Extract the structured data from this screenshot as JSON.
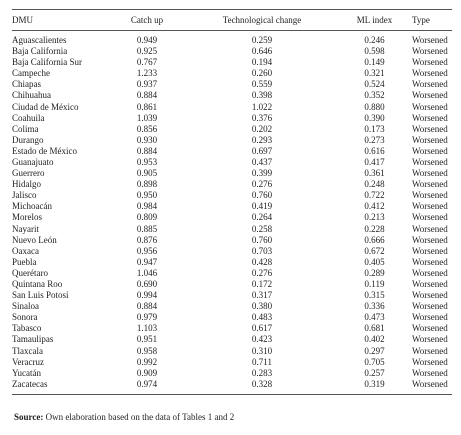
{
  "table": {
    "headers": [
      "DMU",
      "Catch up",
      "Technological change",
      "ML index",
      "Type"
    ],
    "rows": [
      [
        "Aguascalientes",
        "0.949",
        "0.259",
        "0.246",
        "Worsened"
      ],
      [
        "Baja California",
        "0.925",
        "0.646",
        "0.598",
        "Worsened"
      ],
      [
        "Baja California Sur",
        "0.767",
        "0.194",
        "0.149",
        "Worsened"
      ],
      [
        "Campeche",
        "1.233",
        "0.260",
        "0.321",
        "Worsened"
      ],
      [
        "Chiapas",
        "0.937",
        "0.559",
        "0.524",
        "Worsened"
      ],
      [
        "Chihuahua",
        "0.884",
        "0.398",
        "0.352",
        "Worsened"
      ],
      [
        "Ciudad de México",
        "0.861",
        "1.022",
        "0.880",
        "Worsened"
      ],
      [
        "Coahuila",
        "1.039",
        "0.376",
        "0.390",
        "Worsened"
      ],
      [
        "Colima",
        "0.856",
        "0.202",
        "0.173",
        "Worsened"
      ],
      [
        "Durango",
        "0.930",
        "0.293",
        "0.273",
        "Worsened"
      ],
      [
        "Estado de México",
        "0.884",
        "0.697",
        "0.616",
        "Worsened"
      ],
      [
        "Guanajuato",
        "0.953",
        "0.437",
        "0.417",
        "Worsened"
      ],
      [
        "Guerrero",
        "0.905",
        "0.399",
        "0.361",
        "Worsened"
      ],
      [
        "Hidalgo",
        "0.898",
        "0.276",
        "0.248",
        "Worsened"
      ],
      [
        "Jalisco",
        "0.950",
        "0.760",
        "0.722",
        "Worsened"
      ],
      [
        "Michoacán",
        "0.984",
        "0.419",
        "0.412",
        "Worsened"
      ],
      [
        "Morelos",
        "0.809",
        "0.264",
        "0.213",
        "Worsened"
      ],
      [
        "Nayarit",
        "0.885",
        "0.258",
        "0.228",
        "Worsened"
      ],
      [
        "Nuevo León",
        "0.876",
        "0.760",
        "0.666",
        "Worsened"
      ],
      [
        "Oaxaca",
        "0.956",
        "0.703",
        "0.672",
        "Worsened"
      ],
      [
        "Puebla",
        "0.947",
        "0.428",
        "0.405",
        "Worsened"
      ],
      [
        "Querétaro",
        "1.046",
        "0.276",
        "0.289",
        "Worsened"
      ],
      [
        "Quintana Roo",
        "0.690",
        "0.172",
        "0.119",
        "Worsened"
      ],
      [
        "San Luis Potosí",
        "0.994",
        "0.317",
        "0.315",
        "Worsened"
      ],
      [
        "Sinaloa",
        "0.884",
        "0.380",
        "0.336",
        "Worsened"
      ],
      [
        "Sonora",
        "0.979",
        "0.483",
        "0.473",
        "Worsened"
      ],
      [
        "Tabasco",
        "1.103",
        "0.617",
        "0.681",
        "Worsened"
      ],
      [
        "Tamaulipas",
        "0.951",
        "0.423",
        "0.402",
        "Worsened"
      ],
      [
        "Tlaxcala",
        "0.958",
        "0.310",
        "0.297",
        "Worsened"
      ],
      [
        "Veracruz",
        "0.992",
        "0.711",
        "0.705",
        "Worsened"
      ],
      [
        "Yucatán",
        "0.909",
        "0.283",
        "0.257",
        "Worsened"
      ],
      [
        "Zacatecas",
        "0.974",
        "0.328",
        "0.319",
        "Worsened"
      ]
    ]
  },
  "source": {
    "label": "Source:",
    "text": "Own elaboration based on the data of Tables 1 and 2"
  }
}
